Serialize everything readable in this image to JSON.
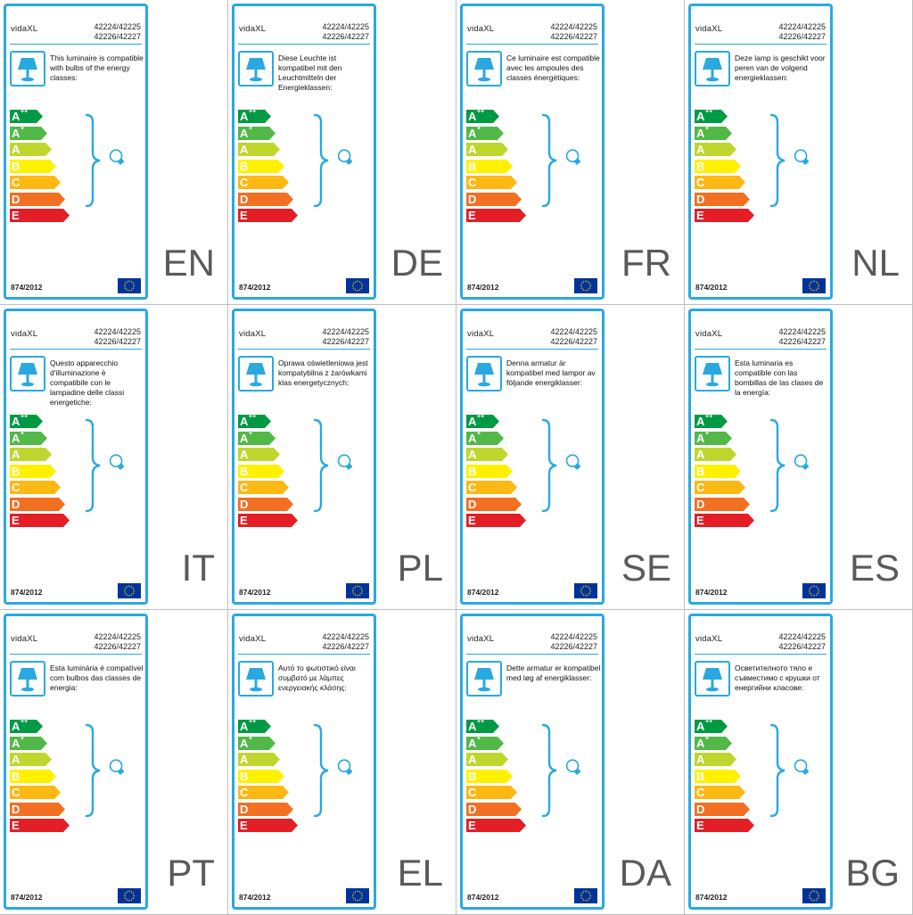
{
  "brand": "vidaXL",
  "model_line1": "42224/42225",
  "model_line2": "42226/42227",
  "regulation": "874/2012",
  "icons": {
    "lamp": "table-lamp-icon",
    "bulb": "light-bulb-icon",
    "flag": "eu-flag-icon"
  },
  "colors": {
    "frame": "#29a9e0",
    "lang_text": "#5a5a5a"
  },
  "energy_classes": [
    {
      "letter": "A",
      "sup": "++",
      "color": "#009a44"
    },
    {
      "letter": "A",
      "sup": "+",
      "color": "#52b847"
    },
    {
      "letter": "A",
      "sup": "",
      "color": "#bfd62f"
    },
    {
      "letter": "B",
      "sup": "",
      "color": "#fff100"
    },
    {
      "letter": "C",
      "sup": "",
      "color": "#fdb814"
    },
    {
      "letter": "D",
      "sup": "",
      "color": "#f36f22"
    },
    {
      "letter": "E",
      "sup": "",
      "color": "#e31e26"
    }
  ],
  "labels": [
    {
      "lang": "EN",
      "text": "This luminaire is compatible with bulbs of the energy classes:"
    },
    {
      "lang": "DE",
      "text": "Diese Leuchte ist kompatibel mit den Leuchtmitteln der Energieklassen:"
    },
    {
      "lang": "FR",
      "text": "Ce luminaire est compatible avec les ampoules des classes énergétiques:"
    },
    {
      "lang": "NL",
      "text": "Deze lamp is geschikt voor peren van de volgend energieklassen:"
    },
    {
      "lang": "IT",
      "text": "Questo apparecchio d'illuminazione è compatibile con le lampadine delle classi energetiche:"
    },
    {
      "lang": "PL",
      "text": "Oprawa oświetleniowa jest kompatybilna z żarówkami klas energetycznych:"
    },
    {
      "lang": "SE",
      "text": "Denna armatur är kompatibel med lampor av följande energiklasser:"
    },
    {
      "lang": "ES",
      "text": "Esta luminaria es compatible con las bombillas de las clases de la energía:"
    },
    {
      "lang": "PT",
      "text": "Esta luminária é compatível com bulbos das classes de energia:"
    },
    {
      "lang": "EL",
      "text": "Αυτό το φωτιστικό είναι συμβατό με λάμπες ενεργειακής κλάσης:"
    },
    {
      "lang": "DA",
      "text": "Dette armatur er kompatibel med løg af energiklasser:"
    },
    {
      "lang": "BG",
      "text": "Осветителното тяло е съвместимо с крушки от енергийни класове:"
    }
  ]
}
